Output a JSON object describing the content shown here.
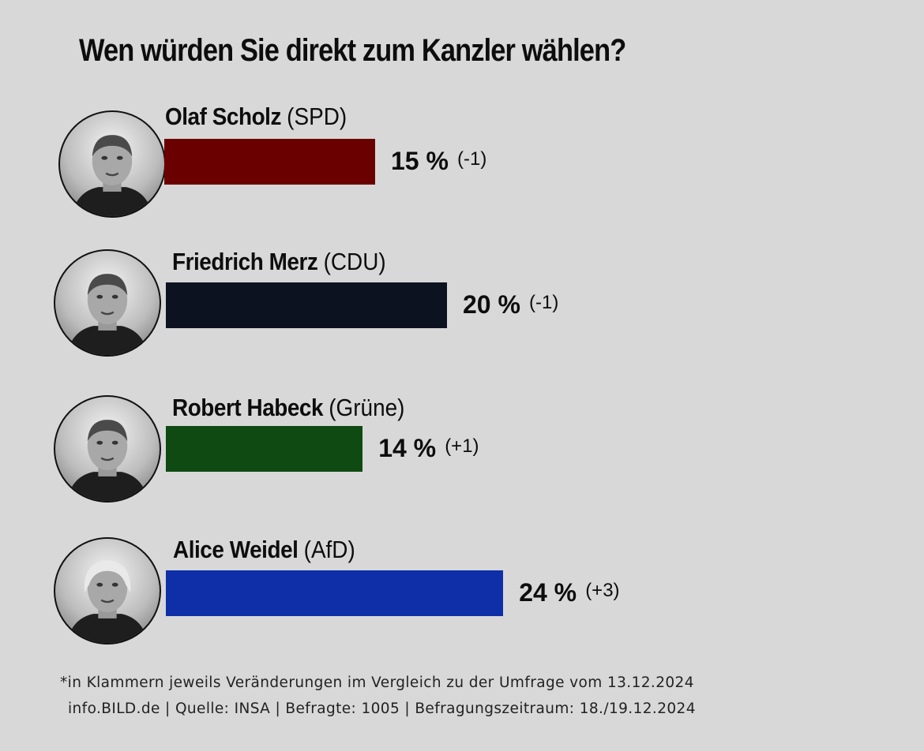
{
  "title": "Wen würden Sie direkt zum Kanzler wählen?",
  "candidates": [
    {
      "name": "Olaf Scholz",
      "party": "(SPD)",
      "value_label": "15 %",
      "change": "(-1)",
      "color": "#6b0000",
      "portrait_icon": "portrait-man-icon"
    },
    {
      "name": "Friedrich Merz",
      "party": "(CDU)",
      "value_label": "20 %",
      "change": "(-1)",
      "color": "#0c1220",
      "portrait_icon": "portrait-man-icon"
    },
    {
      "name": "Robert Habeck",
      "party": "(Grüne)",
      "value_label": "14 %",
      "change": "(+1)",
      "color": "#0e4a12",
      "portrait_icon": "portrait-man-icon"
    },
    {
      "name": "Alice Weidel",
      "party": "(AfD)",
      "value_label": "24 %",
      "change": "(+3)",
      "color": "#0e2fa8",
      "portrait_icon": "portrait-woman-icon"
    }
  ],
  "footnote": "*in Klammern jeweils Veränderungen im Vergleich zu der Umfrage vom 13.12.2024",
  "source": "info.BILD.de | Quelle: INSA | Befragte: 1005 | Befragungszeitraum: 18./19.12.2024",
  "chart_data": {
    "type": "bar",
    "title": "Wen würden Sie direkt zum Kanzler wählen?",
    "orientation": "horizontal",
    "categories": [
      "Olaf Scholz (SPD)",
      "Friedrich Merz (CDU)",
      "Robert Habeck (Grüne)",
      "Alice Weidel (AfD)"
    ],
    "values": [
      15,
      20,
      14,
      24
    ],
    "changes": [
      -1,
      -1,
      1,
      3
    ],
    "unit": "%",
    "grid": false
  }
}
